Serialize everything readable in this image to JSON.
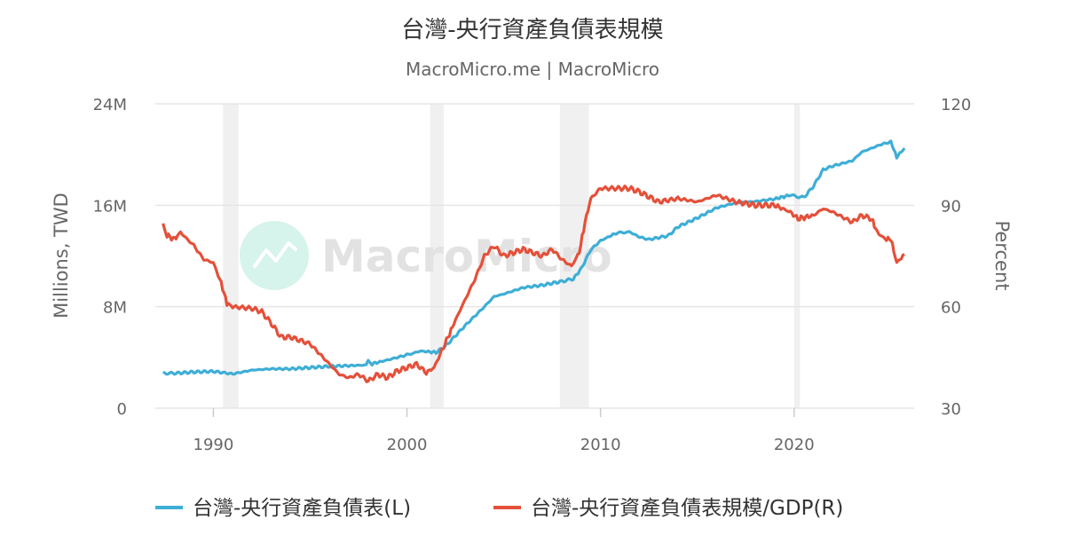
{
  "title": "台灣-央行資產負債表規模",
  "subtitle": "MacroMicro.me | MacroMicro",
  "watermark": "MacroMicro",
  "colors": {
    "left_series": "#3eaed6",
    "right_series": "#e4503a",
    "recession": "#f0f0f0",
    "grid": "#e6e6e6",
    "watermark_badge": "#d6f3ec"
  },
  "chart_data": {
    "type": "line",
    "title": "台灣-央行資產負債表規模",
    "subtitle": "MacroMicro.me | MacroMicro",
    "x_ticks": [
      1990,
      2000,
      2010,
      2020
    ],
    "xlim": [
      1987.0,
      2026.2
    ],
    "left_axis": {
      "title": "Millions, TWD",
      "ylim": [
        0,
        24000000
      ],
      "ticks": [
        {
          "value": 0,
          "label": "0"
        },
        {
          "value": 8000000,
          "label": "8M"
        },
        {
          "value": 16000000,
          "label": "16M"
        },
        {
          "value": 24000000,
          "label": "24M"
        }
      ]
    },
    "right_axis": {
      "title": "Percent",
      "ylim": [
        30,
        120
      ],
      "ticks": [
        {
          "value": 30,
          "label": "30"
        },
        {
          "value": 60,
          "label": "60"
        },
        {
          "value": 90,
          "label": "90"
        },
        {
          "value": 120,
          "label": "120"
        }
      ]
    },
    "recessions": [
      [
        1990.5,
        1991.3
      ],
      [
        2001.2,
        2001.9
      ],
      [
        2007.9,
        2009.4
      ],
      [
        2020.0,
        2020.3
      ]
    ],
    "grid": true,
    "legend_position": "bottom",
    "series": [
      {
        "name": "台灣-央行資產負債表(L)",
        "axis": "left",
        "color": "#3eaed6",
        "points": [
          [
            1987.4,
            2.75
          ],
          [
            1988.0,
            2.75
          ],
          [
            1989.0,
            2.85
          ],
          [
            1990.0,
            2.9
          ],
          [
            1990.5,
            2.8
          ],
          [
            1991.0,
            2.7
          ],
          [
            1992.0,
            3.0
          ],
          [
            1993.0,
            3.1
          ],
          [
            1994.0,
            3.1
          ],
          [
            1995.0,
            3.2
          ],
          [
            1996.0,
            3.3
          ],
          [
            1997.0,
            3.35
          ],
          [
            1997.9,
            3.4
          ],
          [
            1998.0,
            3.8
          ],
          [
            1998.2,
            3.5
          ],
          [
            1999.0,
            3.8
          ],
          [
            2000.0,
            4.2
          ],
          [
            2000.7,
            4.5
          ],
          [
            2001.5,
            4.4
          ],
          [
            2002.0,
            4.9
          ],
          [
            2003.0,
            6.5
          ],
          [
            2004.0,
            8.0
          ],
          [
            2004.5,
            8.8
          ],
          [
            2005.0,
            9.0
          ],
          [
            2006.0,
            9.5
          ],
          [
            2007.0,
            9.7
          ],
          [
            2008.0,
            10.0
          ],
          [
            2008.6,
            10.2
          ],
          [
            2009.0,
            11.0
          ],
          [
            2009.5,
            12.5
          ],
          [
            2010.0,
            13.2
          ],
          [
            2010.8,
            13.8
          ],
          [
            2011.5,
            13.9
          ],
          [
            2012.0,
            13.5
          ],
          [
            2012.5,
            13.3
          ],
          [
            2013.5,
            13.6
          ],
          [
            2014.0,
            14.3
          ],
          [
            2015.0,
            15.0
          ],
          [
            2016.0,
            15.8
          ],
          [
            2017.0,
            16.2
          ],
          [
            2018.0,
            16.3
          ],
          [
            2019.0,
            16.5
          ],
          [
            2019.8,
            16.8
          ],
          [
            2020.5,
            16.6
          ],
          [
            2021.0,
            17.5
          ],
          [
            2021.5,
            18.8
          ],
          [
            2022.0,
            19.1
          ],
          [
            2023.0,
            19.5
          ],
          [
            2023.5,
            20.2
          ],
          [
            2024.0,
            20.5
          ],
          [
            2024.5,
            20.8
          ],
          [
            2025.0,
            21.0
          ],
          [
            2025.3,
            19.8
          ],
          [
            2025.7,
            20.5
          ]
        ]
      },
      {
        "name": "台灣-央行資產負債表規模/GDP(R)",
        "axis": "right",
        "color": "#e4503a",
        "points": [
          [
            1987.4,
            85.0
          ],
          [
            1987.6,
            81.0
          ],
          [
            1988.0,
            80.0
          ],
          [
            1988.3,
            82.0
          ],
          [
            1989.0,
            78.0
          ],
          [
            1989.5,
            74.0
          ],
          [
            1990.0,
            73.0
          ],
          [
            1990.4,
            67.0
          ],
          [
            1990.7,
            61.0
          ],
          [
            1991.0,
            60.0
          ],
          [
            1992.0,
            59.5
          ],
          [
            1992.5,
            58.5
          ],
          [
            1993.0,
            55.0
          ],
          [
            1993.5,
            51.0
          ],
          [
            1994.0,
            51.0
          ],
          [
            1995.0,
            49.0
          ],
          [
            1995.5,
            46.0
          ],
          [
            1996.0,
            43.0
          ],
          [
            1996.5,
            40.0
          ],
          [
            1997.0,
            39.0
          ],
          [
            1997.5,
            40.0
          ],
          [
            1998.0,
            38.0
          ],
          [
            1998.5,
            40.0
          ],
          [
            1999.0,
            39.0
          ],
          [
            1999.5,
            41.0
          ],
          [
            2000.0,
            42.0
          ],
          [
            2000.5,
            43.0
          ],
          [
            2001.0,
            40.5
          ],
          [
            2001.4,
            42.0
          ],
          [
            2001.8,
            47.0
          ],
          [
            2002.2,
            52.0
          ],
          [
            2002.5,
            56.0
          ],
          [
            2003.0,
            62.0
          ],
          [
            2003.5,
            68.0
          ],
          [
            2004.0,
            75.0
          ],
          [
            2004.5,
            78.0
          ],
          [
            2005.0,
            75.0
          ],
          [
            2005.5,
            76.0
          ],
          [
            2006.0,
            77.0
          ],
          [
            2006.5,
            76.0
          ],
          [
            2007.0,
            75.0
          ],
          [
            2007.5,
            77.0
          ],
          [
            2008.0,
            74.0
          ],
          [
            2008.5,
            72.0
          ],
          [
            2008.9,
            76.0
          ],
          [
            2009.2,
            85.0
          ],
          [
            2009.5,
            92.0
          ],
          [
            2010.0,
            95.0
          ],
          [
            2011.0,
            95.0
          ],
          [
            2011.5,
            95.0
          ],
          [
            2012.0,
            94.0
          ],
          [
            2013.0,
            91.0
          ],
          [
            2014.0,
            92.0
          ],
          [
            2015.0,
            91.0
          ],
          [
            2016.0,
            93.0
          ],
          [
            2017.0,
            91.0
          ],
          [
            2018.0,
            90.0
          ],
          [
            2019.0,
            90.0
          ],
          [
            2019.8,
            88.0
          ],
          [
            2020.2,
            86.0
          ],
          [
            2021.0,
            87.0
          ],
          [
            2021.5,
            89.0
          ],
          [
            2022.0,
            88.0
          ],
          [
            2023.0,
            85.0
          ],
          [
            2023.5,
            87.0
          ],
          [
            2024.0,
            86.0
          ],
          [
            2024.3,
            82.0
          ],
          [
            2024.7,
            80.0
          ],
          [
            2025.0,
            80.0
          ],
          [
            2025.3,
            73.0
          ],
          [
            2025.7,
            75.5
          ]
        ]
      }
    ]
  }
}
